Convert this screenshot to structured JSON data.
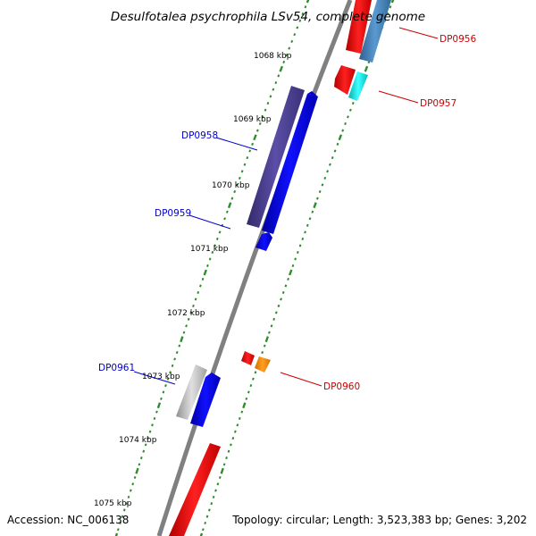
{
  "title": "Desulfotalea psychrophila LSv54, complete genome",
  "accession": "Accession: NC_006138",
  "topology": "Topology: circular; Length: 3,523,383 bp; Genes: 3,202",
  "scale_labels": [
    "1068 kbp",
    "1069 kbp",
    "1070 kbp",
    "1071 kbp",
    "1072 kbp",
    "1073 kbp",
    "1074 kbp",
    "1075 kbp"
  ],
  "gene_labels": {
    "dp0956": "DP0956",
    "dp0957": "DP0957",
    "dp0958": "DP0958",
    "dp0959": "DP0959",
    "dp0960": "DP0960",
    "dp0961": "DP0961"
  },
  "colors": {
    "backbone": "#7a7a7a",
    "tick": "#2e8b2e",
    "label_right": "#cc0000",
    "label_left": "#0000cc",
    "red": "#ff0000",
    "blue": "#0000ee",
    "purple": "#4b3f8f",
    "steelblue": "#4682b4",
    "cyan": "#00e5e5",
    "orange": "#ff8c00",
    "gray": "#b8b8b8"
  }
}
